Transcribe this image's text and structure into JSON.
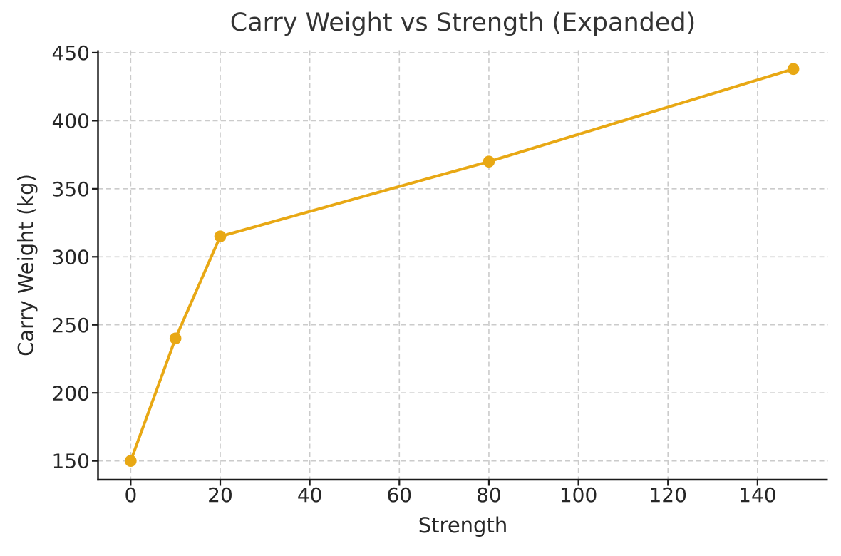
{
  "chart_data": {
    "type": "line",
    "title": "Carry Weight vs Strength (Expanded)",
    "xlabel": "Strength",
    "ylabel": "Carry Weight (kg)",
    "x": [
      0,
      10,
      20,
      80,
      148
    ],
    "y": [
      150,
      240,
      315,
      370,
      438
    ],
    "xticks": [
      0,
      20,
      40,
      60,
      80,
      100,
      120,
      140
    ],
    "yticks": [
      150,
      200,
      250,
      300,
      350,
      400,
      450
    ],
    "xlim": [
      -7.3,
      155.7
    ],
    "ylim": [
      136.2,
      451.8
    ],
    "grid": true,
    "grid_style": "dashed",
    "legend_position": "none",
    "colors": {
      "line": "#E8A814",
      "marker": "#E8A814",
      "grid": "#cbcbcb",
      "spine": "#1a1a1a",
      "text": "#262626",
      "background": "#ffffff"
    }
  }
}
